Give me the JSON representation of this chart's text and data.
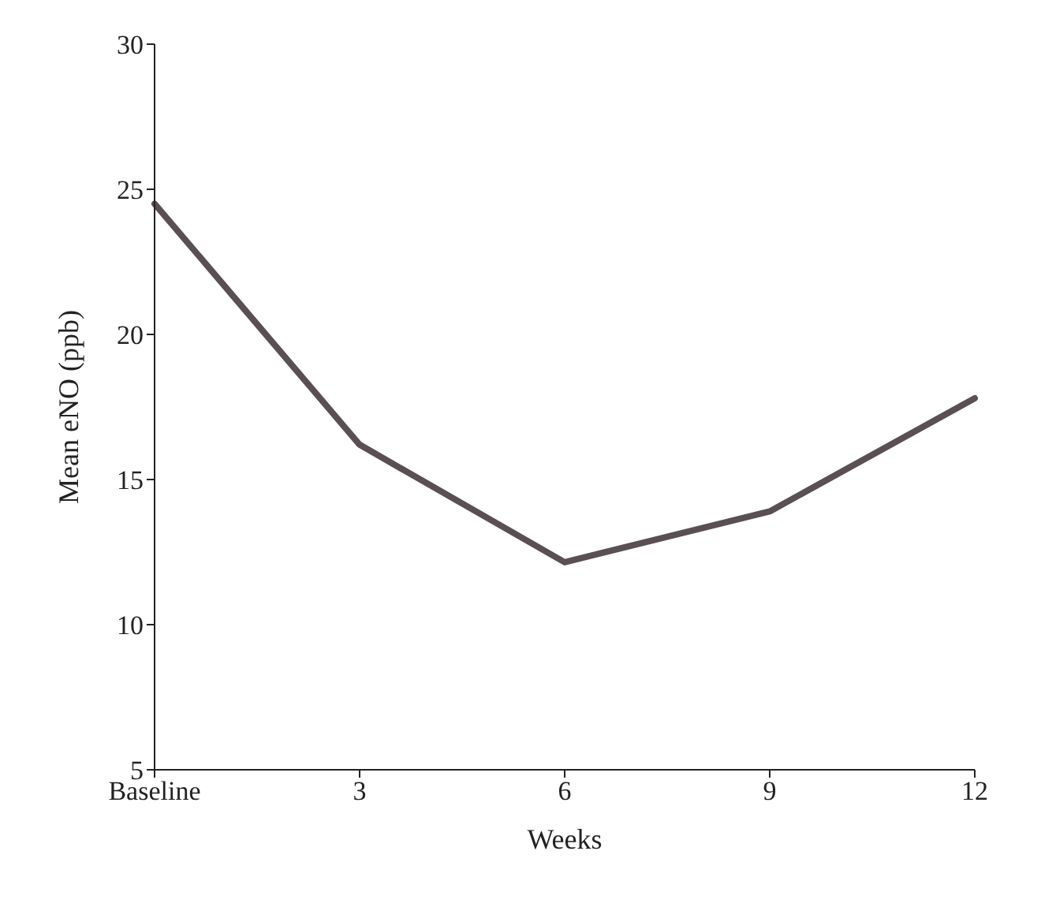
{
  "chart_data": {
    "type": "line",
    "xlabel": "Weeks",
    "ylabel": "Mean eNO (ppb)",
    "categories": [
      "Baseline",
      "3",
      "6",
      "9",
      "12"
    ],
    "series": [
      {
        "color": "#5a4f52",
        "values": [
          24.5,
          16.2,
          12.15,
          13.9,
          17.8
        ]
      }
    ],
    "ylim": [
      5,
      30
    ],
    "yticks": [
      5,
      10,
      15,
      20,
      25,
      30
    ],
    "grid": false,
    "legend": false,
    "marker": "none",
    "line_style": "solid"
  }
}
